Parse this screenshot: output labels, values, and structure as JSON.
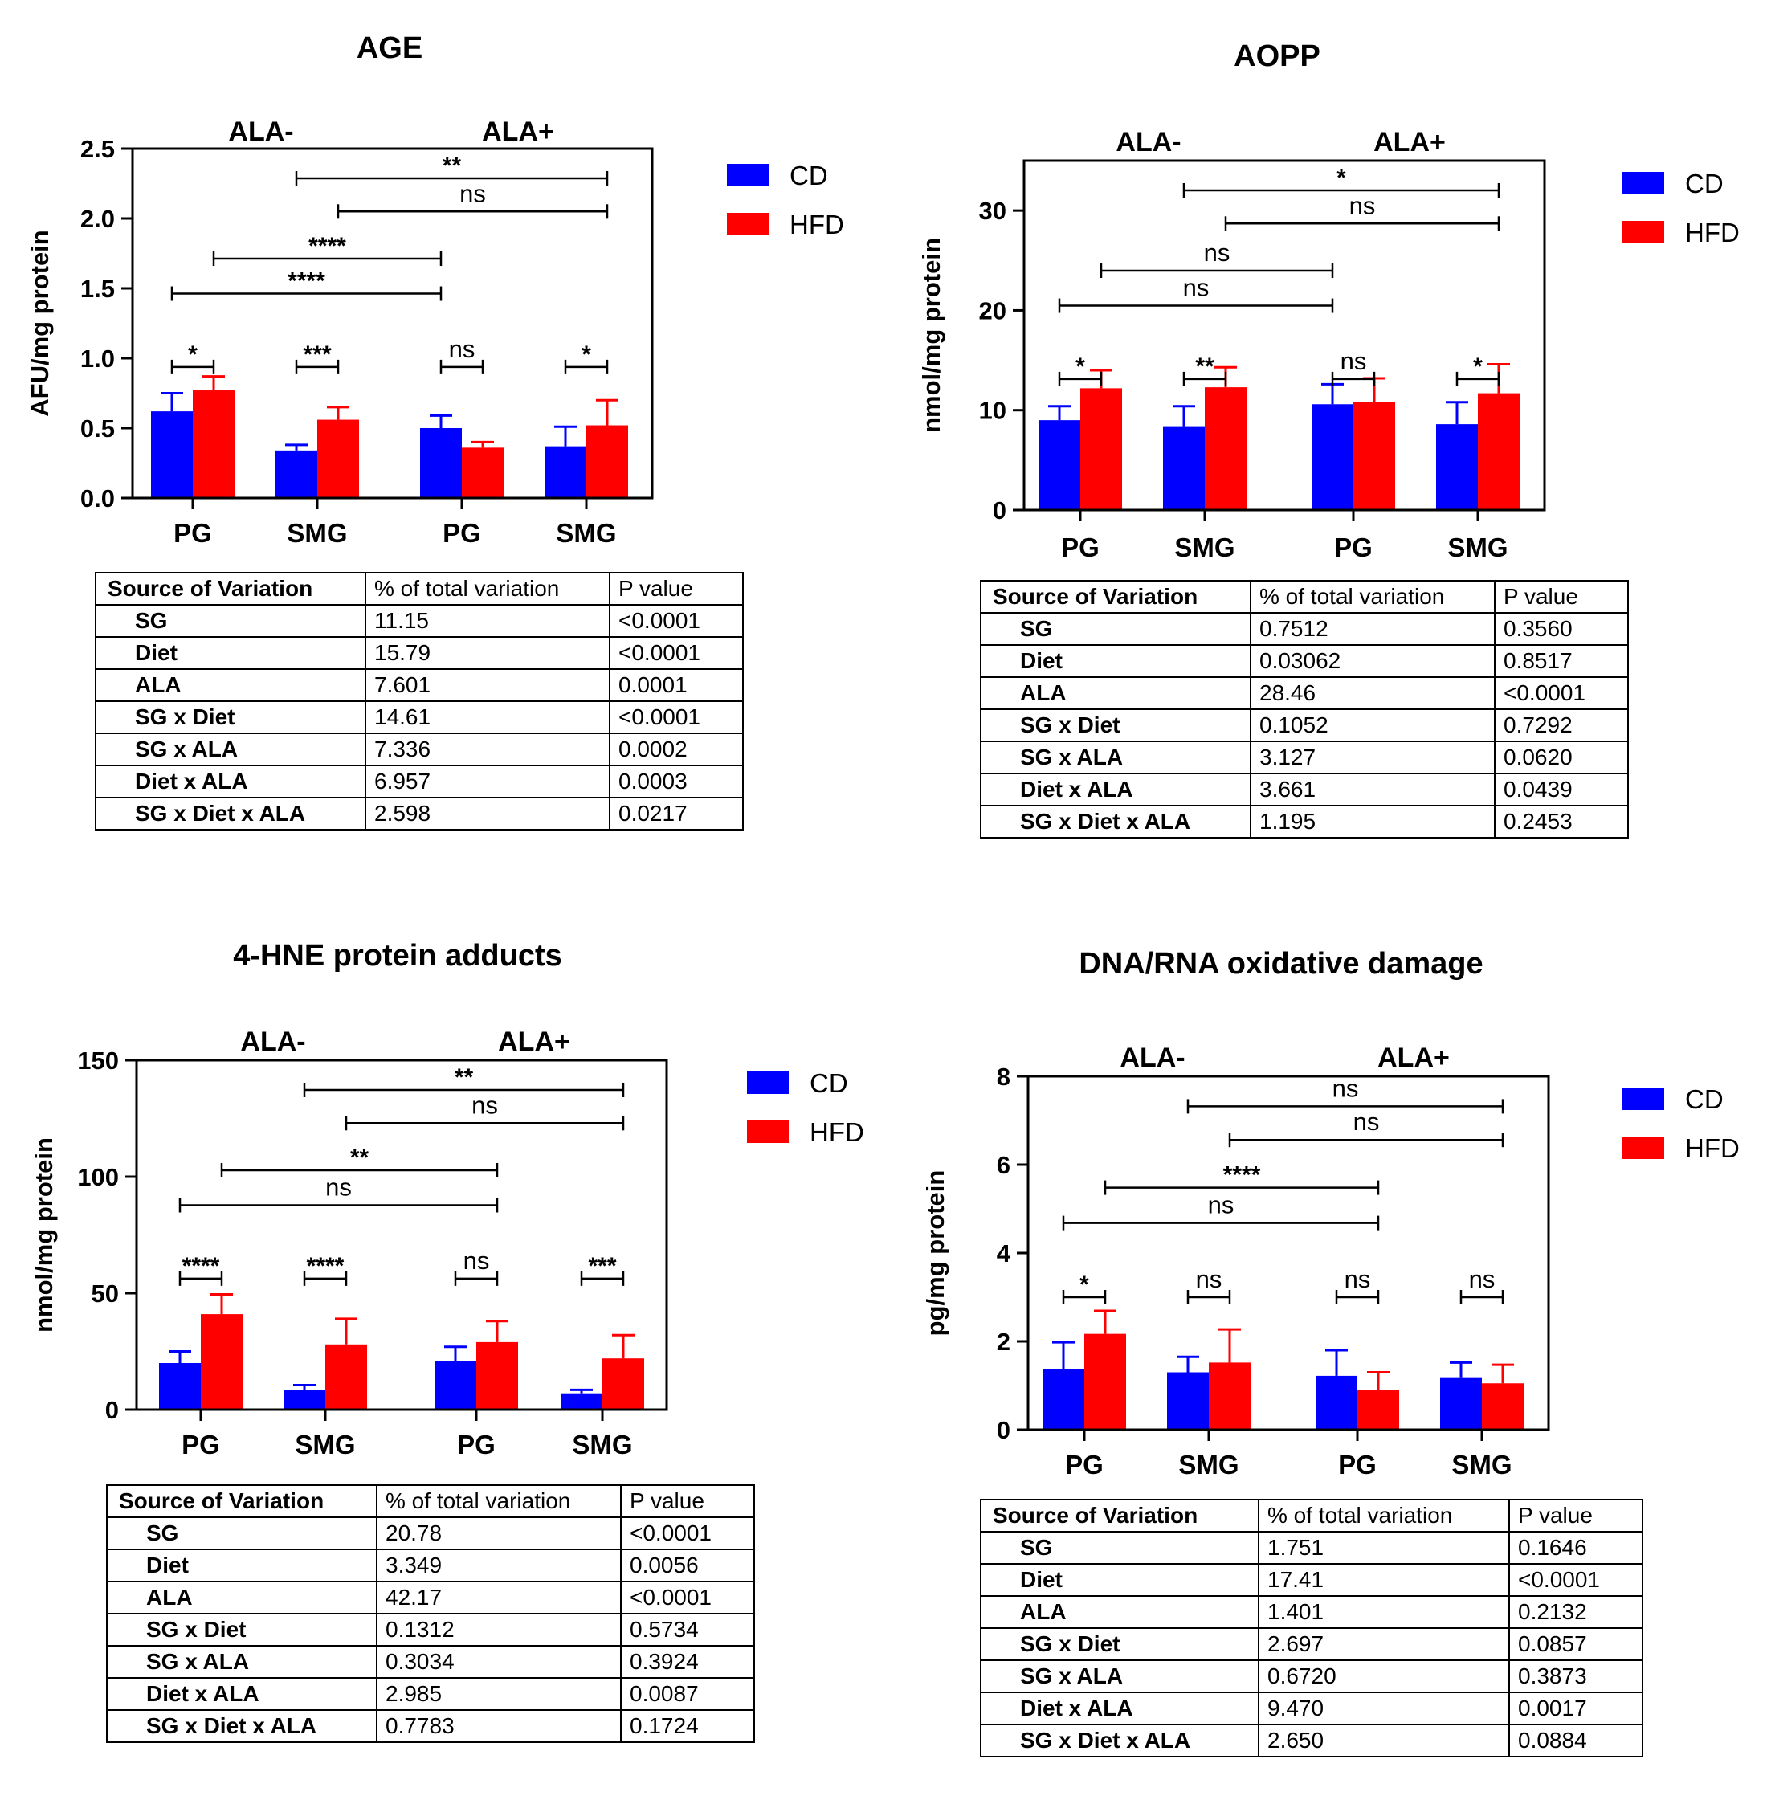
{
  "legend": {
    "cd_label": "CD",
    "hfd_label": "HFD"
  },
  "colors": {
    "cd": "#0000ff",
    "hfd": "#ff0000"
  },
  "table_header": [
    "Source of Variation",
    "% of total variation",
    "P value"
  ],
  "chart_data": [
    {
      "type": "bar",
      "title": "AGE",
      "ylabel": "AFU/mg protein",
      "ylim": [
        0,
        2.5
      ],
      "yticks": [
        "0.0",
        "0.5",
        "1.0",
        "1.5",
        "2.0",
        "2.5"
      ],
      "groups": [
        "ALA-",
        "ALA+"
      ],
      "categories": [
        "PG",
        "SMG",
        "PG",
        "SMG"
      ],
      "series": [
        {
          "name": "CD",
          "values": [
            0.62,
            0.34,
            0.5,
            0.37
          ],
          "errors": [
            0.13,
            0.04,
            0.09,
            0.14
          ]
        },
        {
          "name": "HFD",
          "values": [
            0.77,
            0.56,
            0.36,
            0.52
          ],
          "errors": [
            0.1,
            0.09,
            0.04,
            0.18
          ]
        }
      ],
      "annotations": [
        {
          "from": "CD1",
          "to": "HFD1",
          "label": "*"
        },
        {
          "from": "CD2",
          "to": "HFD2",
          "label": "***"
        },
        {
          "from": "CD3",
          "to": "HFD3",
          "label": "ns"
        },
        {
          "from": "CD4",
          "to": "HFD4",
          "label": "*"
        },
        {
          "from": "CD1",
          "to": "CD3",
          "label": "****"
        },
        {
          "from": "HFD1",
          "to": "CD3",
          "label": "****"
        },
        {
          "from": "CD2",
          "to": "HFD4",
          "label": "**"
        },
        {
          "from": "HFD2",
          "to": "HFD4",
          "label": "ns"
        }
      ],
      "table": [
        [
          "SG",
          "11.15",
          "<0.0001"
        ],
        [
          "Diet",
          "15.79",
          "<0.0001"
        ],
        [
          "ALA",
          "7.601",
          "0.0001"
        ],
        [
          "SG x Diet",
          "14.61",
          "<0.0001"
        ],
        [
          "SG x ALA",
          "7.336",
          "0.0002"
        ],
        [
          "Diet x ALA",
          "6.957",
          "0.0003"
        ],
        [
          "SG x Diet x ALA",
          "2.598",
          "0.0217"
        ]
      ]
    },
    {
      "type": "bar",
      "title": "AOPP",
      "ylabel": "nmol/mg protein",
      "ylim": [
        0,
        35
      ],
      "yticks": [
        "0",
        "10",
        "20",
        "30"
      ],
      "groups": [
        "ALA-",
        "ALA+"
      ],
      "categories": [
        "PG",
        "SMG",
        "PG",
        "SMG"
      ],
      "series": [
        {
          "name": "CD",
          "values": [
            9.0,
            8.4,
            10.6,
            8.6
          ],
          "errors": [
            1.4,
            2.0,
            2.0,
            2.2
          ]
        },
        {
          "name": "HFD",
          "values": [
            12.2,
            12.3,
            10.8,
            11.7
          ],
          "errors": [
            1.8,
            2.0,
            2.4,
            2.9
          ]
        }
      ],
      "annotations": [
        {
          "from": "CD1",
          "to": "HFD1",
          "label": "*"
        },
        {
          "from": "CD2",
          "to": "HFD2",
          "label": "**"
        },
        {
          "from": "CD3",
          "to": "HFD3",
          "label": "ns"
        },
        {
          "from": "CD4",
          "to": "HFD4",
          "label": "*"
        },
        {
          "from": "CD1",
          "to": "CD3",
          "label": "ns"
        },
        {
          "from": "HFD1",
          "to": "CD3",
          "label": "ns"
        },
        {
          "from": "CD2",
          "to": "HFD4",
          "label": "*"
        },
        {
          "from": "HFD2",
          "to": "HFD4",
          "label": "ns"
        }
      ],
      "table": [
        [
          "SG",
          "0.7512",
          "0.3560"
        ],
        [
          "Diet",
          "0.03062",
          "0.8517"
        ],
        [
          "ALA",
          "28.46",
          "<0.0001"
        ],
        [
          "SG x Diet",
          "0.1052",
          "0.7292"
        ],
        [
          "SG x ALA",
          "3.127",
          "0.0620"
        ],
        [
          "Diet x ALA",
          "3.661",
          "0.0439"
        ],
        [
          "SG x Diet x ALA",
          "1.195",
          "0.2453"
        ]
      ]
    },
    {
      "type": "bar",
      "title": "4-HNE protein adducts",
      "ylabel": "nmol/mg protein",
      "ylim": [
        0,
        150
      ],
      "yticks": [
        "0",
        "50",
        "100",
        "150"
      ],
      "groups": [
        "ALA-",
        "ALA+"
      ],
      "categories": [
        "PG",
        "SMG",
        "PG",
        "SMG"
      ],
      "series": [
        {
          "name": "CD",
          "values": [
            20,
            8.5,
            21,
            7
          ],
          "errors": [
            5,
            2,
            6,
            1.5
          ]
        },
        {
          "name": "HFD",
          "values": [
            41,
            28,
            29,
            22
          ],
          "errors": [
            8.5,
            11,
            9,
            10
          ]
        }
      ],
      "annotations": [
        {
          "from": "CD1",
          "to": "HFD1",
          "label": "****"
        },
        {
          "from": "CD2",
          "to": "HFD2",
          "label": "****"
        },
        {
          "from": "CD3",
          "to": "HFD3",
          "label": "ns"
        },
        {
          "from": "CD4",
          "to": "HFD4",
          "label": "***"
        },
        {
          "from": "CD1",
          "to": "HFD3",
          "label": "ns"
        },
        {
          "from": "HFD1",
          "to": "HFD3",
          "label": "**"
        },
        {
          "from": "CD2",
          "to": "HFD4",
          "label": "**"
        },
        {
          "from": "HFD2",
          "to": "HFD4",
          "label": "ns"
        }
      ],
      "table": [
        [
          "SG",
          "20.78",
          "<0.0001"
        ],
        [
          "Diet",
          "3.349",
          "0.0056"
        ],
        [
          "ALA",
          "42.17",
          "<0.0001"
        ],
        [
          "SG x Diet",
          "0.1312",
          "0.5734"
        ],
        [
          "SG x ALA",
          "0.3034",
          "0.3924"
        ],
        [
          "Diet x ALA",
          "2.985",
          "0.0087"
        ],
        [
          "SG x Diet x ALA",
          "0.7783",
          "0.1724"
        ]
      ]
    },
    {
      "type": "bar",
      "title": "DNA/RNA oxidative damage",
      "ylabel": "pg/mg protein",
      "ylim": [
        0,
        8
      ],
      "yticks": [
        "0",
        "2",
        "4",
        "6",
        "8"
      ],
      "groups": [
        "ALA-",
        "ALA+"
      ],
      "categories": [
        "PG",
        "SMG",
        "PG",
        "SMG"
      ],
      "series": [
        {
          "name": "CD",
          "values": [
            1.38,
            1.3,
            1.22,
            1.17
          ],
          "errors": [
            0.6,
            0.35,
            0.58,
            0.35
          ]
        },
        {
          "name": "HFD",
          "values": [
            2.17,
            1.52,
            0.9,
            1.05
          ],
          "errors": [
            0.52,
            0.75,
            0.4,
            0.42
          ]
        }
      ],
      "annotations": [
        {
          "from": "CD1",
          "to": "HFD1",
          "label": "*"
        },
        {
          "from": "CD2",
          "to": "HFD2",
          "label": "ns"
        },
        {
          "from": "CD3",
          "to": "HFD3",
          "label": "ns"
        },
        {
          "from": "CD4",
          "to": "HFD4",
          "label": "ns"
        },
        {
          "from": "CD1",
          "to": "HFD3",
          "label": "ns"
        },
        {
          "from": "HFD1",
          "to": "HFD3",
          "label": "****"
        },
        {
          "from": "CD2",
          "to": "HFD4",
          "label": "ns"
        },
        {
          "from": "HFD2",
          "to": "HFD4",
          "label": "ns"
        }
      ],
      "table": [
        [
          "SG",
          "1.751",
          "0.1646"
        ],
        [
          "Diet",
          "17.41",
          "<0.0001"
        ],
        [
          "ALA",
          "1.401",
          "0.2132"
        ],
        [
          "SG x Diet",
          "2.697",
          "0.0857"
        ],
        [
          "SG x ALA",
          "0.6720",
          "0.3873"
        ],
        [
          "Diet x ALA",
          "9.470",
          "0.0017"
        ],
        [
          "SG x Diet x ALA",
          "2.650",
          "0.0884"
        ]
      ]
    }
  ]
}
